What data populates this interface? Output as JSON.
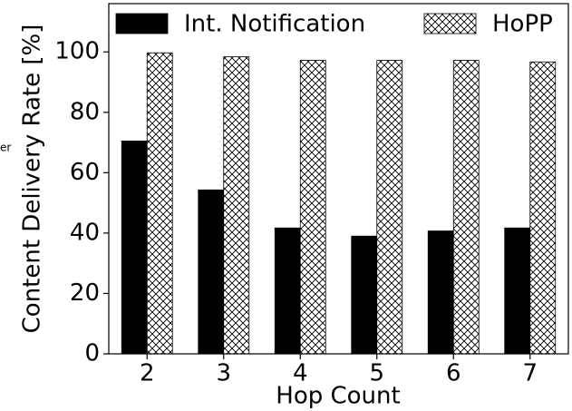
{
  "chart_data": {
    "type": "bar",
    "xlabel": "Hop Count",
    "ylabel": "Content Delivery Rate [%]",
    "annotation": "er",
    "categories": [
      "2",
      "3",
      "4",
      "5",
      "6",
      "7"
    ],
    "series": [
      {
        "name": "Int. Notification",
        "color": "#000000",
        "values": [
          70.5,
          54.3,
          41.7,
          39,
          40.7,
          41.7
        ]
      },
      {
        "name": "HoPP",
        "color": "#ffffff",
        "hatch": "xxx",
        "values": [
          99.7,
          98.4,
          97.2,
          97.2,
          97.2,
          96.7
        ]
      }
    ],
    "ylim": [
      0,
      116
    ],
    "yticks": [
      0,
      20,
      40,
      60,
      80,
      100
    ],
    "legend": "upper center"
  }
}
